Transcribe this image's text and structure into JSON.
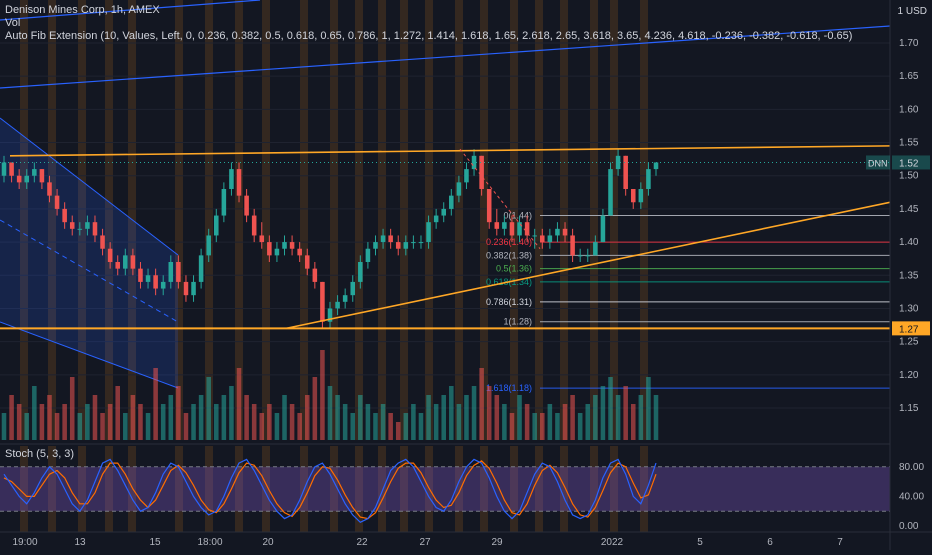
{
  "header": {
    "symbol_line": "Denison Mines Corp, 1h, AMEX",
    "vol_label": "Vol",
    "fib_label": "Auto Fib Extension (10, Values, Left, 0, 0.236, 0.382, 0.5, 0.618, 0.65, 0.786, 1, 1.272, 1.414, 1.618, 1.65, 2.618, 2.65, 3.618, 3.65, 4.236, 4.618, -0.236, -0.382, -0.618, -0.65)"
  },
  "price_axis": {
    "currency": "USD",
    "ticks": [
      "1.70",
      "1.65",
      "1.60",
      "1.55",
      "1.50",
      "1.45",
      "1.40",
      "1.35",
      "1.30",
      "1.25",
      "1.20",
      "1.15"
    ],
    "last_price_label": "1.52",
    "symbol_tag": "DNN",
    "support_label": "1.27"
  },
  "stoch_panel": {
    "label": "Stoch (5, 3, 3)",
    "ticks": [
      "80.00",
      "40.00",
      "0.00"
    ]
  },
  "time_axis": {
    "ticks": [
      "19:00",
      "13",
      "15",
      "18:00",
      "20",
      "22",
      "27",
      "29",
      "2022",
      "5",
      "6",
      "7"
    ]
  },
  "fib_levels": [
    {
      "label": "0(1.44)",
      "color": "#b2b5be"
    },
    {
      "label": "0.236(1.40)",
      "color": "#f23645"
    },
    {
      "label": "0.382(1.38)",
      "color": "#b2b5be"
    },
    {
      "label": "0.5(1.36)",
      "color": "#4caf50"
    },
    {
      "label": "0.618(1.34)",
      "color": "#089981"
    },
    {
      "label": "0.786(1.31)",
      "color": "#d1d4dc"
    },
    {
      "label": "1(1.28)",
      "color": "#b2b5be"
    },
    {
      "label": "1.618(1.18)",
      "color": "#2962ff"
    }
  ],
  "colors": {
    "background": "#131722",
    "up": "#26a69a",
    "down": "#ef5350",
    "trendline": "#ffa726",
    "channel": "#2962ff",
    "stoch_k": "#2962ff",
    "stoch_d": "#ff6d00",
    "stoch_band": "#7e57c2"
  },
  "chart_data": {
    "type": "candlestick",
    "symbol": "DNN",
    "ylim": [
      1.12,
      1.75
    ],
    "candles": [
      [
        1.5,
        1.53,
        1.49,
        1.52
      ],
      [
        1.52,
        1.52,
        1.49,
        1.5
      ],
      [
        1.5,
        1.51,
        1.48,
        1.49
      ],
      [
        1.49,
        1.51,
        1.48,
        1.5
      ],
      [
        1.5,
        1.52,
        1.49,
        1.51
      ],
      [
        1.51,
        1.51,
        1.48,
        1.49
      ],
      [
        1.49,
        1.5,
        1.46,
        1.47
      ],
      [
        1.47,
        1.48,
        1.44,
        1.45
      ],
      [
        1.45,
        1.46,
        1.42,
        1.43
      ],
      [
        1.43,
        1.44,
        1.41,
        1.42
      ],
      [
        1.42,
        1.43,
        1.41,
        1.42
      ],
      [
        1.42,
        1.44,
        1.41,
        1.43
      ],
      [
        1.43,
        1.44,
        1.4,
        1.41
      ],
      [
        1.41,
        1.42,
        1.38,
        1.39
      ],
      [
        1.39,
        1.4,
        1.36,
        1.37
      ],
      [
        1.37,
        1.38,
        1.35,
        1.36
      ],
      [
        1.36,
        1.39,
        1.35,
        1.38
      ],
      [
        1.38,
        1.39,
        1.35,
        1.36
      ],
      [
        1.36,
        1.37,
        1.33,
        1.34
      ],
      [
        1.34,
        1.36,
        1.33,
        1.35
      ],
      [
        1.35,
        1.36,
        1.32,
        1.33
      ],
      [
        1.33,
        1.35,
        1.32,
        1.34
      ],
      [
        1.34,
        1.38,
        1.33,
        1.37
      ],
      [
        1.37,
        1.38,
        1.33,
        1.34
      ],
      [
        1.34,
        1.35,
        1.31,
        1.32
      ],
      [
        1.32,
        1.35,
        1.31,
        1.34
      ],
      [
        1.34,
        1.39,
        1.33,
        1.38
      ],
      [
        1.38,
        1.42,
        1.37,
        1.41
      ],
      [
        1.41,
        1.45,
        1.4,
        1.44
      ],
      [
        1.44,
        1.49,
        1.43,
        1.48
      ],
      [
        1.48,
        1.52,
        1.47,
        1.51
      ],
      [
        1.51,
        1.52,
        1.46,
        1.47
      ],
      [
        1.47,
        1.48,
        1.43,
        1.44
      ],
      [
        1.44,
        1.45,
        1.4,
        1.41
      ],
      [
        1.41,
        1.43,
        1.39,
        1.4
      ],
      [
        1.4,
        1.41,
        1.37,
        1.38
      ],
      [
        1.38,
        1.4,
        1.37,
        1.39
      ],
      [
        1.39,
        1.41,
        1.38,
        1.4
      ],
      [
        1.4,
        1.41,
        1.38,
        1.39
      ],
      [
        1.39,
        1.4,
        1.37,
        1.38
      ],
      [
        1.38,
        1.39,
        1.35,
        1.36
      ],
      [
        1.36,
        1.37,
        1.33,
        1.34
      ],
      [
        1.34,
        1.34,
        1.27,
        1.28
      ],
      [
        1.28,
        1.31,
        1.27,
        1.3
      ],
      [
        1.3,
        1.32,
        1.29,
        1.31
      ],
      [
        1.31,
        1.33,
        1.3,
        1.32
      ],
      [
        1.32,
        1.35,
        1.31,
        1.34
      ],
      [
        1.34,
        1.38,
        1.33,
        1.37
      ],
      [
        1.37,
        1.4,
        1.36,
        1.39
      ],
      [
        1.39,
        1.41,
        1.38,
        1.4
      ],
      [
        1.4,
        1.42,
        1.39,
        1.41
      ],
      [
        1.41,
        1.42,
        1.39,
        1.4
      ],
      [
        1.4,
        1.41,
        1.38,
        1.39
      ],
      [
        1.39,
        1.41,
        1.38,
        1.4
      ],
      [
        1.4,
        1.41,
        1.39,
        1.4
      ],
      [
        1.4,
        1.41,
        1.39,
        1.4
      ],
      [
        1.4,
        1.44,
        1.39,
        1.43
      ],
      [
        1.43,
        1.45,
        1.42,
        1.44
      ],
      [
        1.44,
        1.46,
        1.43,
        1.45
      ],
      [
        1.45,
        1.48,
        1.44,
        1.47
      ],
      [
        1.47,
        1.5,
        1.46,
        1.49
      ],
      [
        1.49,
        1.52,
        1.48,
        1.51
      ],
      [
        1.51,
        1.54,
        1.5,
        1.53
      ],
      [
        1.53,
        1.53,
        1.47,
        1.48
      ],
      [
        1.48,
        1.48,
        1.42,
        1.43
      ],
      [
        1.43,
        1.45,
        1.41,
        1.42
      ],
      [
        1.42,
        1.44,
        1.41,
        1.43
      ],
      [
        1.43,
        1.44,
        1.4,
        1.41
      ],
      [
        1.41,
        1.44,
        1.4,
        1.43
      ],
      [
        1.43,
        1.44,
        1.4,
        1.41
      ],
      [
        1.41,
        1.42,
        1.39,
        1.41
      ],
      [
        1.41,
        1.42,
        1.39,
        1.4
      ],
      [
        1.4,
        1.42,
        1.39,
        1.41
      ],
      [
        1.41,
        1.43,
        1.4,
        1.42
      ],
      [
        1.42,
        1.43,
        1.4,
        1.41
      ],
      [
        1.41,
        1.42,
        1.37,
        1.38
      ],
      [
        1.38,
        1.39,
        1.37,
        1.38
      ],
      [
        1.38,
        1.39,
        1.37,
        1.38
      ],
      [
        1.38,
        1.41,
        1.38,
        1.4
      ],
      [
        1.4,
        1.45,
        1.4,
        1.44
      ],
      [
        1.44,
        1.52,
        1.44,
        1.51
      ],
      [
        1.51,
        1.54,
        1.5,
        1.53
      ],
      [
        1.53,
        1.53,
        1.47,
        1.48
      ],
      [
        1.48,
        1.48,
        1.45,
        1.46
      ],
      [
        1.46,
        1.49,
        1.45,
        1.48
      ],
      [
        1.48,
        1.52,
        1.47,
        1.51
      ],
      [
        1.51,
        1.52,
        1.5,
        1.52
      ]
    ],
    "volume": [
      0.3,
      0.5,
      0.4,
      0.3,
      0.6,
      0.4,
      0.5,
      0.3,
      0.4,
      0.7,
      0.3,
      0.4,
      0.5,
      0.3,
      0.4,
      0.6,
      0.3,
      0.5,
      0.4,
      0.3,
      0.8,
      0.4,
      0.5,
      0.6,
      0.3,
      0.4,
      0.5,
      0.7,
      0.4,
      0.5,
      0.6,
      0.8,
      0.5,
      0.4,
      0.3,
      0.4,
      0.3,
      0.5,
      0.4,
      0.3,
      0.5,
      0.7,
      1.0,
      0.6,
      0.5,
      0.4,
      0.3,
      0.5,
      0.4,
      0.3,
      0.4,
      0.3,
      0.2,
      0.3,
      0.4,
      0.3,
      0.5,
      0.4,
      0.5,
      0.6,
      0.4,
      0.5,
      0.6,
      0.8,
      0.6,
      0.5,
      0.4,
      0.3,
      0.5,
      0.4,
      0.3,
      0.3,
      0.4,
      0.3,
      0.4,
      0.5,
      0.3,
      0.4,
      0.5,
      0.6,
      0.7,
      0.5,
      0.6,
      0.4,
      0.5,
      0.7,
      0.5
    ],
    "stochastic": {
      "k": [
        70,
        55,
        40,
        30,
        45,
        65,
        80,
        70,
        50,
        30,
        20,
        35,
        60,
        85,
        90,
        75,
        55,
        35,
        20,
        25,
        45,
        70,
        85,
        80,
        60,
        40,
        25,
        15,
        20,
        40,
        65,
        85,
        90,
        75,
        55,
        35,
        20,
        10,
        15,
        35,
        60,
        80,
        85,
        70,
        50,
        30,
        15,
        5,
        10,
        25,
        50,
        75,
        85,
        90,
        80,
        60,
        40,
        25,
        20,
        35,
        60,
        80,
        90,
        85,
        65,
        40,
        20,
        10,
        20,
        45,
        70,
        85,
        80,
        60,
        35,
        15,
        10,
        15,
        35,
        65,
        85,
        90,
        70,
        40,
        30,
        55,
        85
      ],
      "d": [
        65,
        60,
        50,
        40,
        40,
        55,
        70,
        75,
        65,
        45,
        30,
        30,
        45,
        70,
        85,
        85,
        70,
        50,
        35,
        25,
        35,
        55,
        75,
        82,
        72,
        55,
        35,
        22,
        18,
        30,
        50,
        72,
        85,
        82,
        68,
        48,
        30,
        18,
        13,
        25,
        45,
        68,
        80,
        78,
        62,
        42,
        25,
        12,
        10,
        18,
        38,
        60,
        78,
        85,
        85,
        72,
        52,
        35,
        25,
        28,
        45,
        68,
        82,
        88,
        78,
        58,
        35,
        18,
        15,
        30,
        55,
        75,
        82,
        72,
        52,
        30,
        15,
        12,
        25,
        48,
        72,
        85,
        80,
        58,
        38,
        42,
        70
      ]
    },
    "fib_levels": [
      {
        "ratio": 0,
        "price": 1.44
      },
      {
        "ratio": 0.236,
        "price": 1.4
      },
      {
        "ratio": 0.382,
        "price": 1.38
      },
      {
        "ratio": 0.5,
        "price": 1.36
      },
      {
        "ratio": 0.618,
        "price": 1.34
      },
      {
        "ratio": 0.786,
        "price": 1.31
      },
      {
        "ratio": 1,
        "price": 1.28
      },
      {
        "ratio": 1.618,
        "price": 1.18
      }
    ],
    "support_price": 1.27,
    "last_price": 1.52
  }
}
